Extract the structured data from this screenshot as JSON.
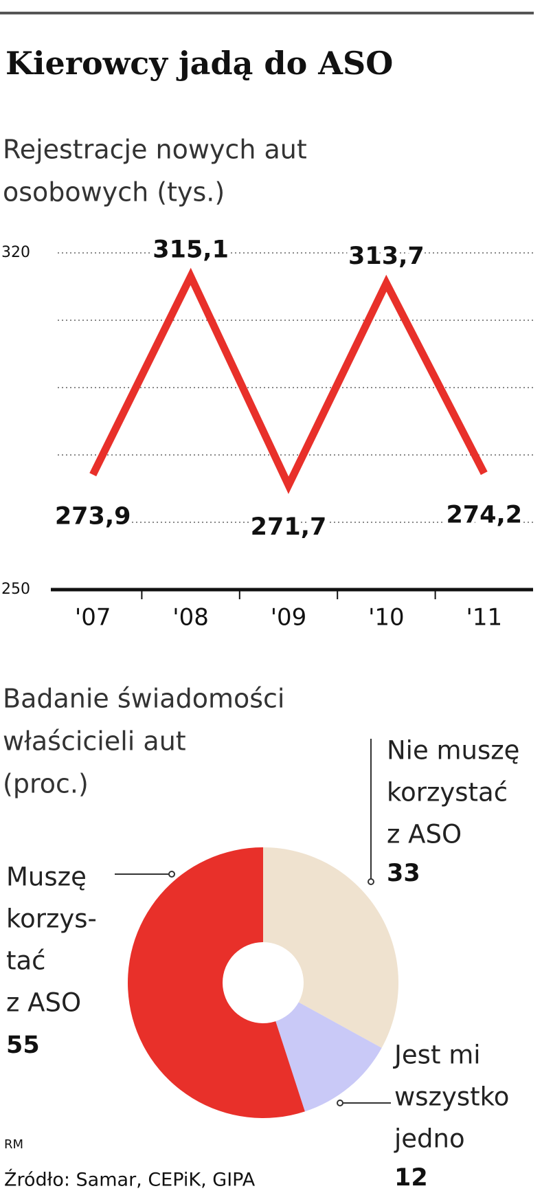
{
  "header": {
    "title": "Kierowcy jadą do ASO"
  },
  "chart_data": [
    {
      "type": "line",
      "subtitle_lines": [
        "Rejestracje nowych aut",
        "osobowych (tys.)"
      ],
      "categories": [
        "'07",
        "'08",
        "'09",
        "'10",
        "'11"
      ],
      "values": [
        273.9,
        315.1,
        271.7,
        313.7,
        274.2
      ],
      "value_labels": [
        "273,9",
        "315,1",
        "271,7",
        "313,7",
        "274,2"
      ],
      "color": "#e8302a",
      "ylim": [
        250,
        320
      ],
      "yticks": [
        250,
        320
      ],
      "grid_lines": [
        264,
        278,
        292,
        306,
        320
      ],
      "grid": true
    },
    {
      "type": "donut",
      "subtitle_lines": [
        "Badanie świadomości",
        "właścicieli aut",
        "(proc.)"
      ],
      "slices": [
        {
          "label_lines": [
            "Nie muszę",
            "korzystać",
            "z ASO"
          ],
          "value": 33,
          "color": "#efe2cf"
        },
        {
          "label_lines": [
            "Jest mi",
            "wszystko",
            "jedno"
          ],
          "value": 12,
          "color": "#c9c9f7"
        },
        {
          "label_lines": [
            "Muszę",
            "korzys-",
            "tać",
            "z ASO"
          ],
          "value": 55,
          "color": "#e8302a"
        }
      ]
    }
  ],
  "footer": {
    "author": "RM",
    "source": "Źródło: Samar, CEPiK, GIPA"
  }
}
